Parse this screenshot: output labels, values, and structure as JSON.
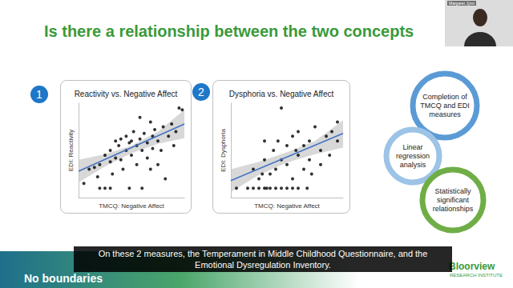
{
  "slide": {
    "title": "Is there a relationship between the two concepts",
    "caption": "On these 2 measures, the Temperament in Middle Childhood Questionnaire, and the Emotional Dysregulation Inventory.",
    "footer": "No boundaries",
    "brand": [
      "Bloorview",
      "RESEARCH INSTITUTE"
    ],
    "speaker": "Margaret Jynn",
    "steps": [
      "Completion of TMCQ and EDI measures",
      "Linear regression analysis",
      "Statistically significant relationships"
    ]
  },
  "chart_data": [
    {
      "type": "scatter",
      "badge": "1",
      "title": "Reactivity vs. Negative Affect",
      "x_label": "TMCQ: Negative Affect",
      "y_label": "EDI: Reactivity",
      "x": [
        0.5,
        1,
        1.5,
        1.8,
        2,
        2.5,
        2.5,
        3,
        3,
        3.2,
        3.5,
        3.5,
        3.8,
        4,
        4,
        4.2,
        4.5,
        4.5,
        4.8,
        5,
        5,
        5.2,
        5.5,
        5.5,
        5.8,
        6,
        6,
        6.2,
        6.5,
        6.5,
        6.8,
        7,
        7,
        7.2,
        7.5,
        7.5,
        7.8,
        8,
        8.2,
        8.5,
        8.8,
        9,
        9.2,
        9.5,
        9.8,
        2,
        3,
        4.8,
        6.8,
        5.8
      ],
      "values": [
        1.5,
        3,
        3.2,
        2.2,
        3.5,
        1,
        4.5,
        3.8,
        5,
        2.5,
        4.2,
        6,
        5.5,
        4,
        6.2,
        3,
        5,
        6.5,
        5.8,
        4.5,
        6,
        7,
        5.5,
        3.5,
        6.2,
        5,
        1,
        6.8,
        5.8,
        4.2,
        8,
        6.5,
        5.2,
        7.2,
        6,
        3.5,
        5,
        7.5,
        2,
        6.5,
        7.8,
        5.5,
        7,
        9.5,
        9.3,
        1,
        1,
        1,
        3,
        8.5
      ],
      "color": "#000000",
      "fit": {
        "x": [
          0,
          10
        ],
        "values": [
          2.8,
          7.8
        ],
        "color": "#4472c4"
      },
      "band": {
        "x": [
          0,
          2.5,
          5,
          7.5,
          10
        ],
        "lower": [
          1.6,
          3.3,
          4.7,
          5.7,
          6.3
        ],
        "upper": [
          4.0,
          4.6,
          5.5,
          7.0,
          9.3
        ],
        "color": "#c8c8c8"
      },
      "xlim": [
        0,
        10
      ],
      "ylim": [
        0,
        10
      ],
      "xticks": [],
      "yticks": [],
      "grid": false,
      "tick_labels": false
    },
    {
      "type": "scatter",
      "badge": "2",
      "title": "Dysphoria vs. Negative Affect",
      "x_label": "TMCQ: Negative Affect",
      "y_label": "EDI: Dysphoria",
      "x": [
        0.5,
        1.5,
        2,
        2.5,
        3,
        3.2,
        3.5,
        4,
        4.5,
        5,
        5.5,
        6,
        2,
        2.5,
        3,
        3.5,
        3.8,
        4,
        4.2,
        4.5,
        5,
        5,
        5.5,
        5.5,
        6,
        6,
        6.5,
        6.5,
        7,
        7,
        7.2,
        7.5,
        8,
        8,
        8.5,
        9,
        9.5,
        9.5,
        4.5,
        3,
        6.8,
        8.8,
        2.8,
        5.8
      ],
      "values": [
        1,
        1,
        1,
        1,
        1,
        1,
        1,
        1,
        1,
        1,
        1,
        1,
        3,
        2,
        4,
        2.5,
        5,
        3,
        6,
        4,
        5.5,
        3.5,
        2,
        6.5,
        4.5,
        7,
        3,
        5.5,
        6,
        4,
        2.5,
        7.5,
        5,
        3.5,
        6.5,
        7,
        6,
        8,
        9.5,
        6,
        1,
        4.5,
        2.5,
        5
      ],
      "color": "#000000",
      "fit": {
        "x": [
          0,
          10
        ],
        "values": [
          1.8,
          6.8
        ],
        "color": "#4472c4"
      },
      "band": {
        "x": [
          0,
          2.5,
          5,
          7.5,
          10
        ],
        "lower": [
          0.6,
          2.4,
          3.7,
          4.6,
          5.3
        ],
        "upper": [
          3.0,
          3.8,
          4.8,
          6.0,
          8.2
        ],
        "color": "#c8c8c8"
      },
      "xlim": [
        0,
        10
      ],
      "ylim": [
        0,
        10
      ],
      "xticks": [],
      "yticks": [],
      "grid": false,
      "tick_labels": false
    }
  ]
}
